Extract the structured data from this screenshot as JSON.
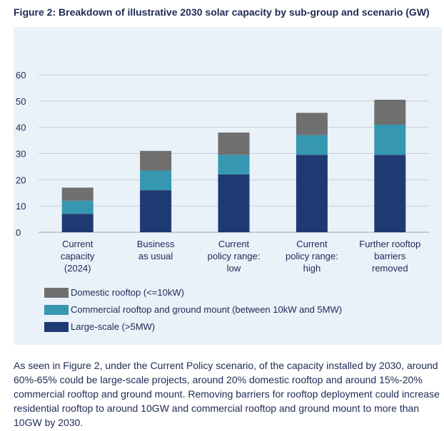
{
  "figure_title": "Figure 2: Breakdown of illustrative 2030 solar capacity by sub-group and scenario (GW)",
  "colors": {
    "panel_bg": "#e9f1f9",
    "large_scale": "#1f3a73",
    "commercial": "#3597b0",
    "domestic": "#6f6f6f",
    "text": "#1d2a55"
  },
  "chart_data": {
    "type": "bar",
    "stacked": true,
    "title": "Breakdown of illustrative 2030 solar capacity by sub-group and scenario (GW)",
    "xlabel": "",
    "ylabel": "",
    "ylim": [
      0,
      60
    ],
    "yticks": [
      0,
      10,
      20,
      30,
      40,
      50,
      60
    ],
    "grid": true,
    "legend_position": "bottom-left",
    "categories": [
      [
        "Current",
        "capacity",
        "(2024)"
      ],
      [
        "Business",
        "as usual"
      ],
      [
        "Current",
        "policy range:",
        "low"
      ],
      [
        "Current",
        "policy range:",
        "high"
      ],
      [
        "Further rooftop",
        "barriers",
        "removed"
      ]
    ],
    "series": [
      {
        "name": "Large-scale (>5MW)",
        "color": "#1f3a73",
        "values": [
          7,
          16,
          22,
          29.5,
          29.5
        ]
      },
      {
        "name": "Commercial rooftop and ground mount (between 10kW and 5MW)",
        "color": "#3597b0",
        "values": [
          5,
          7.5,
          7.5,
          7.5,
          11.5
        ]
      },
      {
        "name": "Domestic rooftop (<=10kW)",
        "color": "#6f6f6f",
        "values": [
          5,
          7.5,
          8.5,
          8.5,
          9.5
        ]
      }
    ]
  },
  "legend": [
    {
      "label": "Domestic rooftop (<=10kW)",
      "color": "#6f6f6f"
    },
    {
      "label": "Commercial rooftop and ground mount (between 10kW and 5MW)",
      "color": "#3597b0"
    },
    {
      "label": "Large-scale (>5MW)",
      "color": "#1f3a73"
    }
  ],
  "body_text": "As seen in Figure 2, under the Current Policy scenario, of the capacity installed by 2030, around 60%-65% could be large-scale projects, around 20% domestic rooftop and around 15%-20% commercial rooftop and ground mount. Removing barriers for rooftop deployment could increase residential rooftop to around 10GW and commercial rooftop and ground mount to more than 10GW by 2030."
}
